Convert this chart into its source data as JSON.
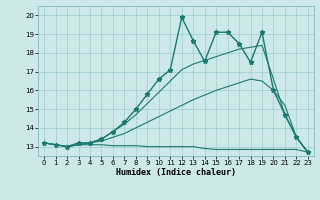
{
  "xlabel": "Humidex (Indice chaleur)",
  "bg_color": "#cce8e8",
  "line_color": "#1a7a6e",
  "xlim": [
    -0.5,
    23.5
  ],
  "ylim": [
    12.5,
    20.5
  ],
  "yticks": [
    13,
    14,
    15,
    16,
    17,
    18,
    19,
    20
  ],
  "xticks": [
    0,
    1,
    2,
    3,
    4,
    5,
    6,
    7,
    8,
    9,
    10,
    11,
    12,
    13,
    14,
    15,
    16,
    17,
    18,
    19,
    20,
    21,
    22,
    23
  ],
  "series_flat_x": [
    0,
    1,
    2,
    3,
    4,
    5,
    6,
    7,
    8,
    9,
    10,
    11,
    12,
    13,
    14,
    15,
    16,
    17,
    18,
    19,
    20,
    21,
    22,
    23
  ],
  "series_flat_y": [
    13.2,
    13.1,
    13.0,
    13.1,
    13.1,
    13.1,
    13.05,
    13.05,
    13.05,
    13.0,
    13.0,
    13.0,
    13.0,
    13.0,
    12.9,
    12.85,
    12.85,
    12.85,
    12.85,
    12.85,
    12.85,
    12.85,
    12.85,
    12.7
  ],
  "series_slow_x": [
    0,
    1,
    2,
    3,
    4,
    5,
    6,
    7,
    8,
    9,
    10,
    11,
    12,
    13,
    14,
    15,
    16,
    17,
    18,
    19,
    20,
    21,
    22,
    23
  ],
  "series_slow_y": [
    13.2,
    13.1,
    13.0,
    13.1,
    13.2,
    13.3,
    13.5,
    13.7,
    14.0,
    14.3,
    14.6,
    14.9,
    15.2,
    15.5,
    15.75,
    16.0,
    16.2,
    16.4,
    16.6,
    16.5,
    16.0,
    15.2,
    13.5,
    12.7
  ],
  "series_med_x": [
    0,
    1,
    2,
    3,
    4,
    5,
    6,
    7,
    8,
    9,
    10,
    11,
    12,
    13,
    14,
    15,
    16,
    17,
    18,
    19,
    20,
    21,
    22,
    23
  ],
  "series_med_y": [
    13.2,
    13.1,
    13.0,
    13.1,
    13.2,
    13.4,
    13.8,
    14.2,
    14.7,
    15.3,
    15.9,
    16.5,
    17.1,
    17.4,
    17.6,
    17.8,
    18.0,
    18.2,
    18.3,
    18.4,
    16.6,
    14.7,
    13.5,
    12.7
  ],
  "series_main_x": [
    0,
    1,
    2,
    3,
    4,
    5,
    6,
    7,
    8,
    9,
    10,
    11,
    12,
    13,
    14,
    15,
    16,
    17,
    18,
    19,
    20,
    21,
    22,
    23
  ],
  "series_main_y": [
    13.2,
    13.1,
    13.0,
    13.2,
    13.2,
    13.4,
    13.8,
    14.3,
    15.0,
    15.8,
    16.6,
    17.1,
    19.9,
    18.65,
    17.55,
    19.1,
    19.1,
    18.5,
    17.5,
    19.1,
    16.0,
    14.7,
    13.5,
    12.7
  ]
}
